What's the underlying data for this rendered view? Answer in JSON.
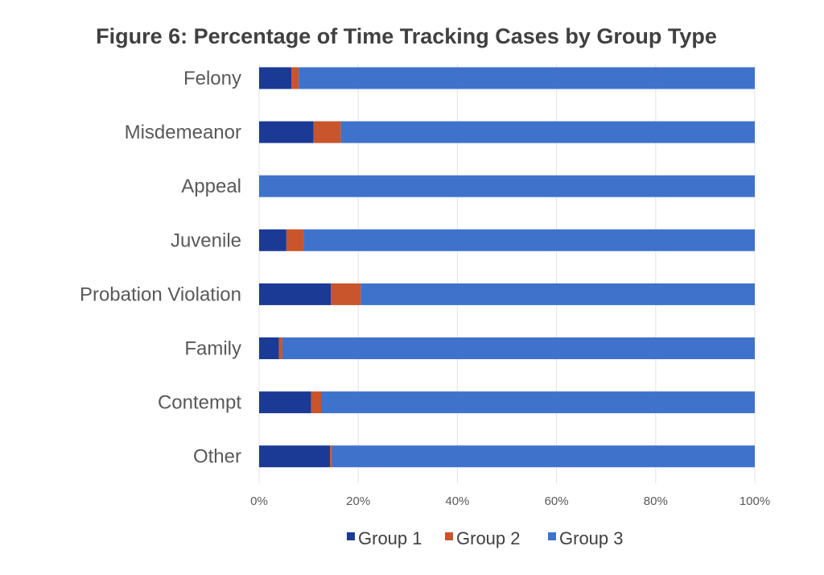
{
  "chart_data": {
    "type": "bar",
    "orientation": "horizontal",
    "stacked": true,
    "title": "Figure 6: Percentage of Time Tracking Cases by Group Type",
    "categories": [
      "Felony",
      "Misdemeanor",
      "Appeal",
      "Juvenile",
      "Probation Violation",
      "Family",
      "Contempt",
      "Other"
    ],
    "series": [
      {
        "name": "Group 1",
        "color": "#1b3a96",
        "values": [
          6.5,
          11,
          0,
          5.5,
          14.5,
          4,
          10.5,
          14.3
        ]
      },
      {
        "name": "Group 2",
        "color": "#c8552b",
        "values": [
          1.5,
          5.5,
          0,
          3.5,
          6,
          0.7,
          2,
          0.4
        ]
      },
      {
        "name": "Group 3",
        "color": "#3f72cb",
        "values": [
          92,
          83.5,
          100,
          91,
          79.5,
          95.3,
          87.5,
          85.3
        ]
      }
    ],
    "xticks": [
      "0%",
      "20%",
      "40%",
      "60%",
      "80%",
      "100%"
    ],
    "xlim": [
      0,
      100
    ],
    "grid": true,
    "legend": "bottom-center"
  }
}
